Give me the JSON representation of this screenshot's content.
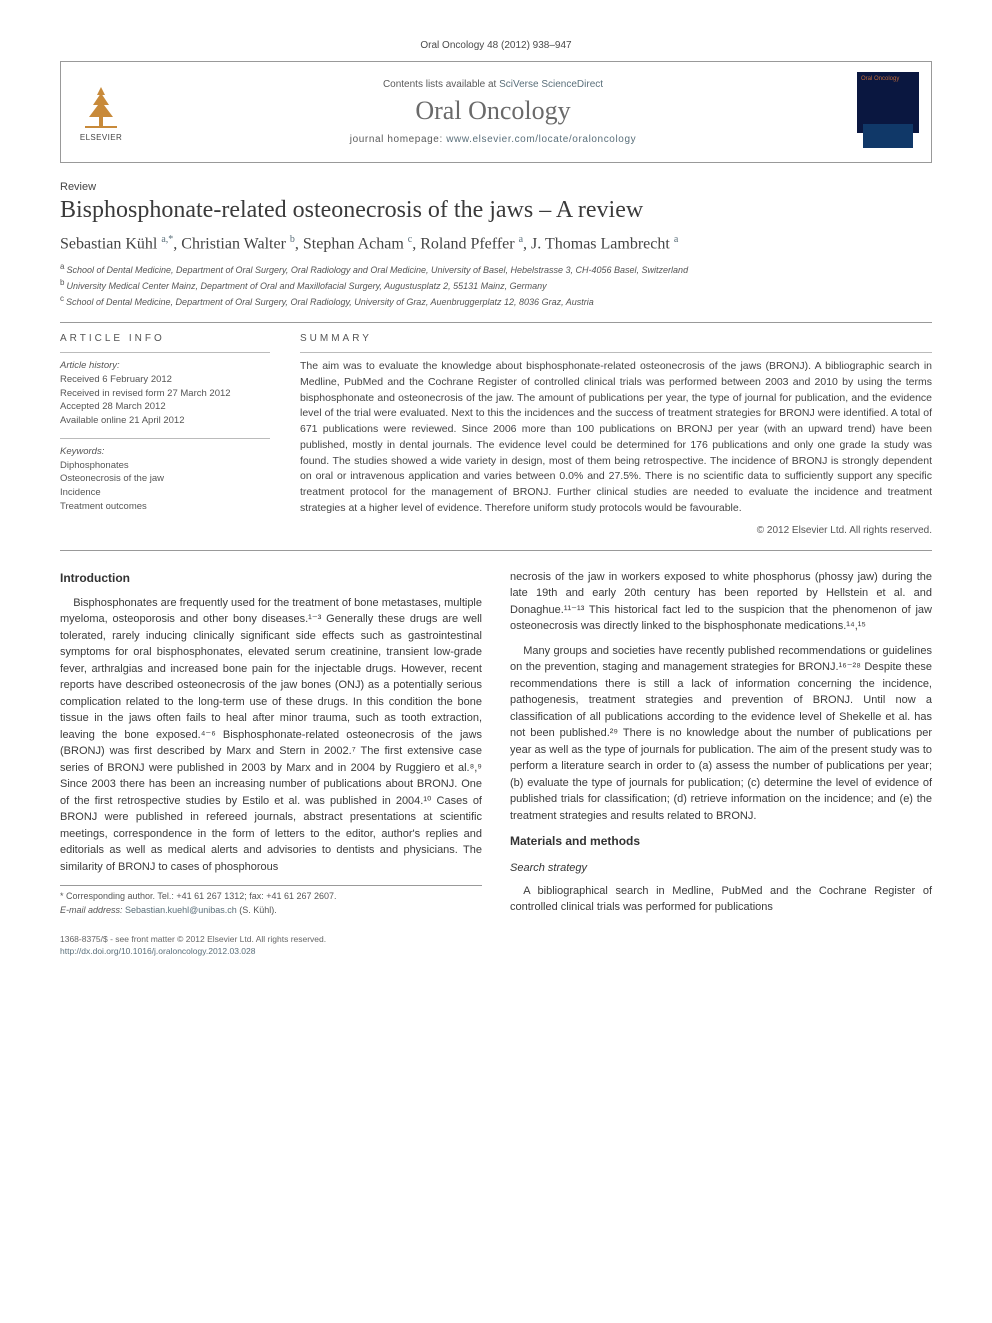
{
  "citation": "Oral Oncology 48 (2012) 938–947",
  "header": {
    "contents_prefix": "Contents lists available at ",
    "contents_link": "SciVerse ScienceDirect",
    "journal": "Oral Oncology",
    "homepage_prefix": "journal homepage: ",
    "homepage_url": "www.elsevier.com/locate/oraloncology",
    "publisher": "ELSEVIER",
    "cover_label": "Oral Oncology"
  },
  "article": {
    "type_label": "Review",
    "title": "Bisphosphonate-related osteonecrosis of the jaws – A review",
    "authors_html": "Sebastian Kühl <sup>a,*</sup>, Christian Walter <sup>b</sup>, Stephan Acham <sup>c</sup>, Roland Pfeffer <sup>a</sup>, J. Thomas Lambrecht <sup>a</sup>",
    "affiliations": [
      "School of Dental Medicine, Department of Oral Surgery, Oral Radiology and Oral Medicine, University of Basel, Hebelstrasse 3, CH-4056 Basel, Switzerland",
      "University Medical Center Mainz, Department of Oral and Maxillofacial Surgery, Augustusplatz 2, 55131 Mainz, Germany",
      "School of Dental Medicine, Department of Oral Surgery, Oral Radiology, University of Graz, Auenbruggerplatz 12, 8036 Graz, Austria"
    ],
    "aff_markers": [
      "a",
      "b",
      "c"
    ]
  },
  "info": {
    "head": "ARTICLE INFO",
    "history_label": "Article history:",
    "history": [
      "Received 6 February 2012",
      "Received in revised form 27 March 2012",
      "Accepted 28 March 2012",
      "Available online 21 April 2012"
    ],
    "keywords_label": "Keywords:",
    "keywords": [
      "Diphosphonates",
      "Osteonecrosis of the jaw",
      "Incidence",
      "Treatment outcomes"
    ]
  },
  "summary": {
    "head": "SUMMARY",
    "text": "The aim was to evaluate the knowledge about bisphosphonate-related osteonecrosis of the jaws (BRONJ). A bibliographic search in Medline, PubMed and the Cochrane Register of controlled clinical trials was performed between 2003 and 2010 by using the terms bisphosphonate and osteonecrosis of the jaw. The amount of publications per year, the type of journal for publication, and the evidence level of the trial were evaluated. Next to this the incidences and the success of treatment strategies for BRONJ were identified. A total of 671 publications were reviewed. Since 2006 more than 100 publications on BRONJ per year (with an upward trend) have been published, mostly in dental journals. The evidence level could be determined for 176 publications and only one grade Ia study was found. The studies showed a wide variety in design, most of them being retrospective. The incidence of BRONJ is strongly dependent on oral or intravenous application and varies between 0.0% and 27.5%. There is no scientific data to sufficiently support any specific treatment protocol for the management of BRONJ. Further clinical studies are needed to evaluate the incidence and treatment strategies at a higher level of evidence. Therefore uniform study protocols would be favourable.",
    "copyright": "© 2012 Elsevier Ltd. All rights reserved."
  },
  "body": {
    "intro_head": "Introduction",
    "intro_p1": "Bisphosphonates are frequently used for the treatment of bone metastases, multiple myeloma, osteoporosis and other bony diseases.¹⁻³ Generally these drugs are well tolerated, rarely inducing clinically significant side effects such as gastrointestinal symptoms for oral bisphosphonates, elevated serum creatinine, transient low-grade fever, arthralgias and increased bone pain for the injectable drugs. However, recent reports have described osteonecrosis of the jaw bones (ONJ) as a potentially serious complication related to the long-term use of these drugs. In this condition the bone tissue in the jaws often fails to heal after minor trauma, such as tooth extraction, leaving the bone exposed.⁴⁻⁶ Bisphosphonate-related osteonecrosis of the jaws (BRONJ) was first described by Marx and Stern in 2002.⁷ The first extensive case series of BRONJ were published in 2003 by Marx and in 2004 by Ruggiero et al.⁸,⁹ Since 2003 there has been an increasing number of publications about BRONJ. One of the first retrospective studies by Estilo et al. was published in 2004.¹⁰ Cases of BRONJ were published in refereed journals, abstract presentations at scientific meetings, correspondence in the form of letters to the editor, author's replies and editorials as well as medical alerts and advisories to dentists and physicians. The similarity of BRONJ to cases of phosphorous",
    "intro_p2": "necrosis of the jaw in workers exposed to white phosphorus (phossy jaw) during the late 19th and early 20th century has been reported by Hellstein et al. and Donaghue.¹¹⁻¹³ This historical fact led to the suspicion that the phenomenon of jaw osteonecrosis was directly linked to the bisphosphonate medications.¹⁴,¹⁵",
    "intro_p3": "Many groups and societies have recently published recommendations or guidelines on the prevention, staging and management strategies for BRONJ.¹⁶⁻²⁸ Despite these recommendations there is still a lack of information concerning the incidence, pathogenesis, treatment strategies and prevention of BRONJ. Until now a classification of all publications according to the evidence level of Shekelle et al. has not been published.²⁹ There is no knowledge about the number of publications per year as well as the type of journals for publication. The aim of the present study was to perform a literature search in order to (a) assess the number of publications per year; (b) evaluate the type of journals for publication; (c) determine the level of evidence of published trials for classification; (d) retrieve information on the incidence; and (e) the treatment strategies and results related to BRONJ.",
    "methods_head": "Materials and methods",
    "search_head": "Search strategy",
    "search_p1": "A bibliographical search in Medline, PubMed and the Cochrane Register of controlled clinical trials was performed for publications"
  },
  "footnote": {
    "corr_label": "* Corresponding author. Tel.: +41 61 267 1312; fax: +41 61 267 2607.",
    "email_label": "E-mail address:",
    "email": "Sebastian.kuehl@unibas.ch",
    "email_suffix": "(S. Kühl)."
  },
  "footer": {
    "issn": "1368-8375/$ - see front matter © 2012 Elsevier Ltd. All rights reserved.",
    "doi": "http://dx.doi.org/10.1016/j.oraloncology.2012.03.028"
  },
  "colors": {
    "text": "#3a3a3a",
    "link": "#5a6f7a",
    "rule": "#999999",
    "meta_text": "#555555",
    "journal_gray": "#6a6a6a"
  },
  "fonts": {
    "body_size": 11,
    "title_size": 24,
    "journal_size": 26,
    "summary_size": 10.5,
    "meta_size": 9.5
  }
}
